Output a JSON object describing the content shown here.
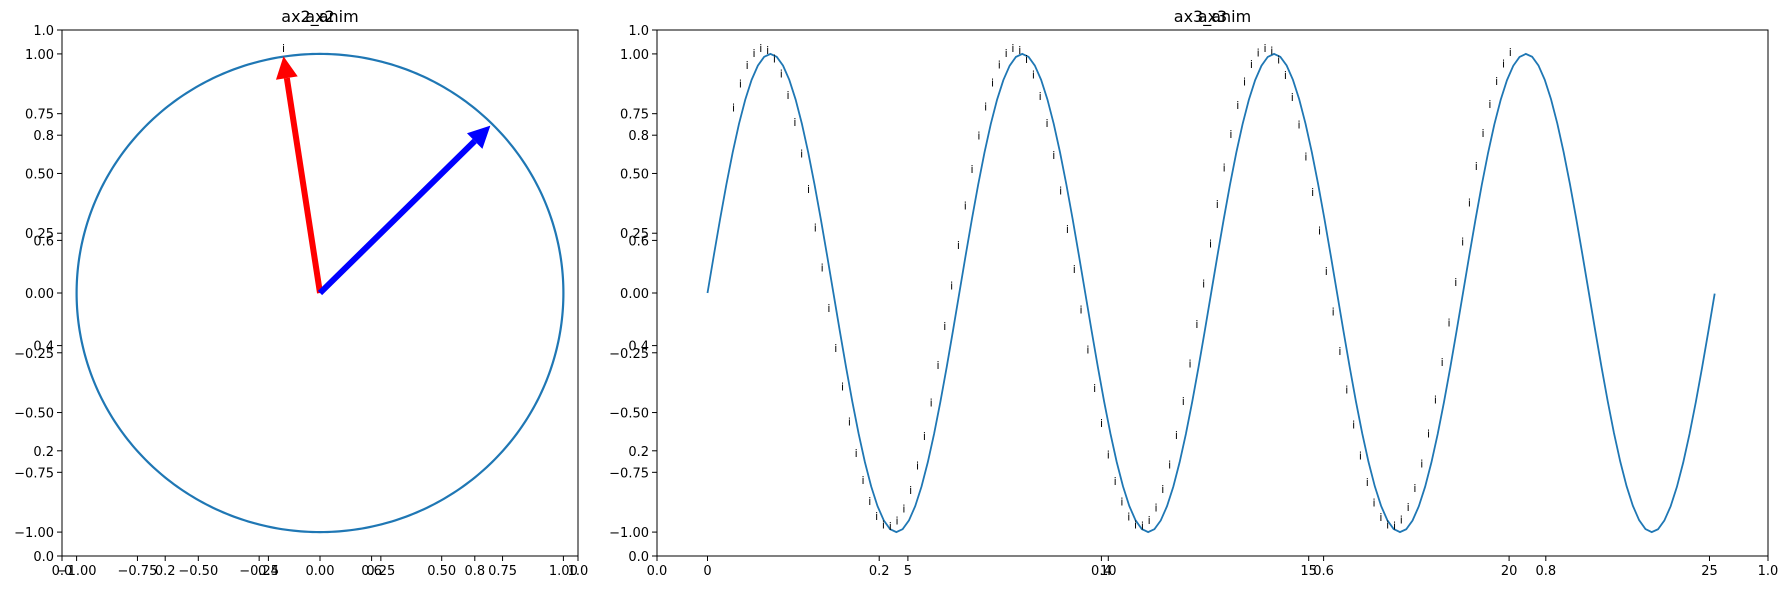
{
  "chart_data": [
    {
      "type": "line",
      "panel": "left",
      "titles": [
        "ax2",
        "ax2_anim"
      ],
      "outer_xticks": [
        "0.0",
        "0.2",
        "0.4",
        "0.6",
        "0.8",
        "1.0"
      ],
      "outer_yticks": [
        "0.0",
        "0.2",
        "0.4",
        "0.6",
        "0.8",
        "1.0"
      ],
      "xticks": [
        "−1.00",
        "−0.75",
        "−0.50",
        "−0.25",
        "0.00",
        "0.25",
        "0.50",
        "0.75",
        "1.00"
      ],
      "yticks": [
        "−1.00",
        "−0.75",
        "−0.50",
        "−0.25",
        "0.00",
        "0.25",
        "0.50",
        "0.75",
        "1.00"
      ],
      "xlim": [
        -1.06,
        1.06
      ],
      "ylim": [
        -1.1,
        1.1
      ],
      "circle": {
        "radius": 1,
        "color": "#1f77b4"
      },
      "arrows": [
        {
          "name": "red-arrow",
          "color": "#ff0000",
          "to": [
            -0.15,
            0.99
          ]
        },
        {
          "name": "blue-arrow",
          "color": "#0000ff",
          "to": [
            0.7,
            0.7
          ]
        }
      ],
      "annotation_text": "i",
      "annotations_at": [
        [
          -0.15,
          1.0
        ]
      ]
    },
    {
      "type": "line",
      "panel": "right",
      "titles": [
        "ax3",
        "ax3_anim"
      ],
      "outer_xticks": [
        "0.0",
        "0.2",
        "0.4",
        "0.6",
        "0.8",
        "1.0"
      ],
      "outer_yticks": [
        "0.0",
        "0.2",
        "0.4",
        "0.6",
        "0.8",
        "1.0"
      ],
      "xticks": [
        "0",
        "5",
        "10",
        "15",
        "20",
        "25"
      ],
      "yticks": [
        "−1.00",
        "−0.75",
        "−0.50",
        "−0.25",
        "0.00",
        "0.25",
        "0.50",
        "0.75",
        "1.00"
      ],
      "xlim": [
        -1.26,
        26.46
      ],
      "ylim": [
        -1.1,
        1.1
      ],
      "series": [
        {
          "function": "sin",
          "x_start": 0,
          "x_end": 25.13,
          "color": "#1f77b4"
        }
      ],
      "annotation_text": "i",
      "annotation_x_range": [
        0.85,
        20.25
      ],
      "annotation_step": 0.17
    }
  ]
}
